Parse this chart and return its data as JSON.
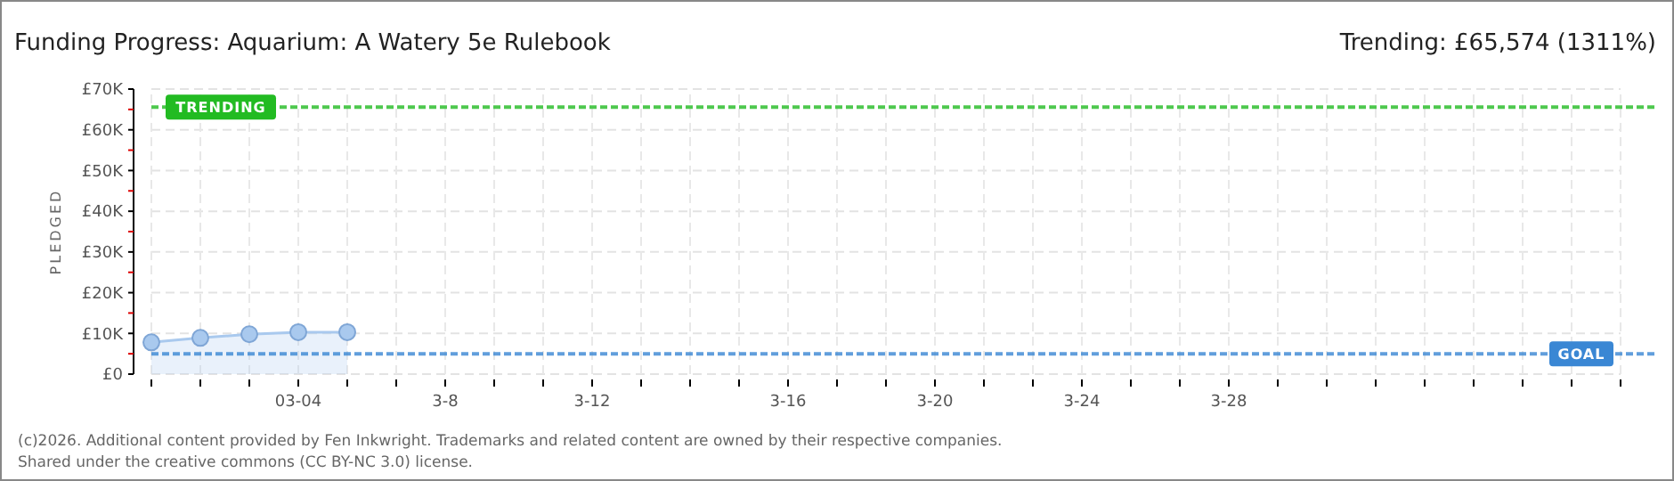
{
  "chart_data": {
    "type": "area",
    "title": "Funding Progress: Aquarium: A Watery 5e Rulebook",
    "subtitle": "Trending: £65,574 (1311%)",
    "ylabel": "PLEDGED",
    "categories": [
      null,
      null,
      null,
      "03-04",
      null,
      null,
      "3-8",
      null,
      null,
      "3-12",
      null,
      null,
      null,
      "3-16",
      null,
      null,
      "3-20",
      null,
      null,
      "3-24",
      null,
      null,
      "3-28",
      null,
      null,
      null,
      null,
      null,
      null,
      null,
      null
    ],
    "series": [
      {
        "color": "#a9c9ee",
        "values": [
          7800,
          8900,
          9800,
          10300,
          10300,
          null,
          null,
          null,
          null,
          null,
          null,
          null,
          null,
          null,
          null,
          null,
          null,
          null,
          null,
          null,
          null,
          null,
          null,
          null,
          null,
          null,
          null,
          null,
          null,
          null,
          null
        ]
      }
    ],
    "ylim": [
      0,
      70000
    ],
    "yticks": [
      {
        "value": 0,
        "label": "£0"
      },
      {
        "value": 5000,
        "label": null
      },
      {
        "value": 10000,
        "label": "£10K"
      },
      {
        "value": 15000,
        "label": null
      },
      {
        "value": 20000,
        "label": "£20K"
      },
      {
        "value": 25000,
        "label": null
      },
      {
        "value": 30000,
        "label": "£30K"
      },
      {
        "value": 35000,
        "label": null
      },
      {
        "value": 40000,
        "label": "£40K"
      },
      {
        "value": 45000,
        "label": null
      },
      {
        "value": 50000,
        "label": "£50K"
      },
      {
        "value": 55000,
        "label": null
      },
      {
        "value": 60000,
        "label": "£60K"
      },
      {
        "value": 65000,
        "label": null
      },
      {
        "value": 70000,
        "label": "£70K"
      }
    ],
    "ref_lines": [
      {
        "axis": "y",
        "value": 65574,
        "label": "TRENDING",
        "color": "#22bb22",
        "line_style": "dashed"
      },
      {
        "axis": "y",
        "value": 5000,
        "label": "GOAL",
        "color": "#3a87d4",
        "line_style": "dashed"
      }
    ],
    "grid": true,
    "marker": "circle",
    "annotations": [
      "(c)2026. Additional content provided by Fen Inkwright. Trademarks and related content are owned by their respective companies.",
      "Shared under the creative commons (CC BY-NC 3.0) license."
    ]
  }
}
